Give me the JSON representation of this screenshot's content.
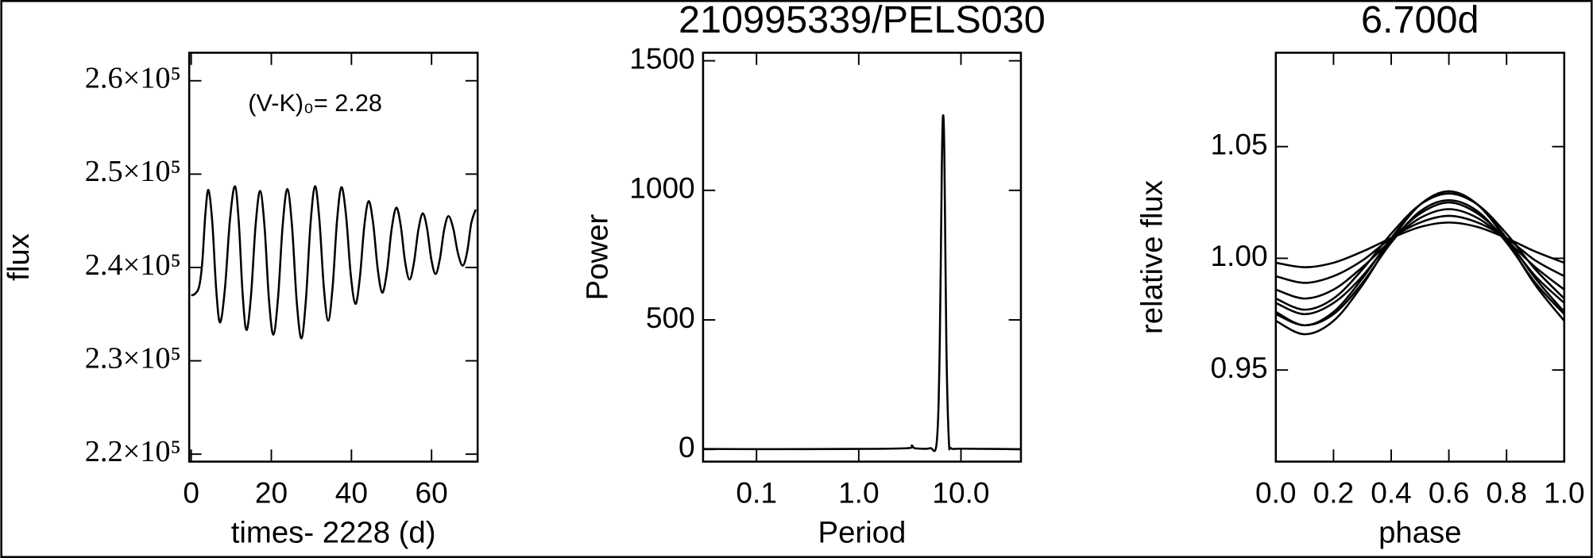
{
  "chart_data": [
    {
      "type": "line",
      "annotation": "(V-K)₀= 2.28",
      "xlabel": "times- 2228 (d)",
      "ylabel": "flux",
      "color": "#000000",
      "x": [
        0,
        1.0,
        2.0,
        2.77,
        3.53,
        4.3,
        5.27,
        6.23,
        7.2,
        8.43,
        9.67,
        10.9,
        11.87,
        12.83,
        13.8,
        14.93,
        16.07,
        17.2,
        18.3,
        19.4,
        20.5,
        21.67,
        22.83,
        24.0,
        25.17,
        26.33,
        27.5,
        28.63,
        29.77,
        30.9,
        32.0,
        33.1,
        34.2,
        35.3,
        36.4,
        37.5,
        38.67,
        39.83,
        41.0,
        42.1,
        43.2,
        44.3,
        45.43,
        46.57,
        47.7,
        48.87,
        50.03,
        51.2,
        52.3,
        53.4,
        54.5,
        55.6,
        56.7,
        57.8,
        58.87,
        59.93,
        61.0,
        62.07,
        63.13,
        64.2,
        65.4,
        66.6,
        67.8,
        68.9,
        69.9,
        71.0
      ],
      "values": [
        237000,
        237200,
        238000,
        240600,
        245700,
        248300,
        244800,
        237700,
        234100,
        237800,
        245100,
        248700,
        244900,
        237200,
        233300,
        237000,
        244500,
        248200,
        244400,
        236600,
        232800,
        236700,
        244500,
        248400,
        244400,
        236400,
        232400,
        236500,
        244600,
        248700,
        245100,
        237900,
        234300,
        237900,
        245000,
        248600,
        245500,
        239200,
        236100,
        238900,
        244400,
        247100,
        244700,
        239800,
        237300,
        239600,
        244100,
        246400,
        244500,
        240600,
        238700,
        240500,
        244000,
        245800,
        244200,
        240900,
        239300,
        240900,
        244000,
        245500,
        244200,
        241500,
        240200,
        241700,
        244700,
        246200
      ],
      "xlim": [
        -0.5,
        71.5
      ],
      "xticks": [
        0,
        20,
        40,
        60
      ],
      "ylim": [
        219200,
        263000
      ],
      "yticks": [
        {
          "value": 220000,
          "label": "2.2×10⁵"
        },
        {
          "value": 230000,
          "label": "2.3×10⁵"
        },
        {
          "value": 240000,
          "label": "2.4×10⁵"
        },
        {
          "value": 250000,
          "label": "2.5×10⁵"
        },
        {
          "value": 260000,
          "label": "2.6×10⁵"
        }
      ]
    },
    {
      "type": "line",
      "title": "210995339/PELS030",
      "xlabel": "Period",
      "ylabel": "Power",
      "color": "#000000",
      "xlog": true,
      "x": [
        0.03,
        0.1,
        1,
        3,
        3.3,
        3.5,
        4,
        5,
        5.8,
        6.2,
        6.5,
        6.7,
        6.9,
        7.2,
        7.6,
        8,
        10,
        20,
        38
      ],
      "values": [
        2,
        1,
        2,
        5,
        15,
        5,
        3,
        5,
        30,
        400,
        1100,
        1290,
        1100,
        400,
        40,
        5,
        3,
        2,
        1
      ],
      "xlim": [
        0.03,
        38.6
      ],
      "xticks": [
        0.1,
        {
          "value": 1,
          "label": "1.0"
        },
        {
          "value": 10,
          "label": "10.0"
        }
      ],
      "ylim": [
        -47,
        1531
      ],
      "yticks": [
        0,
        500,
        1000,
        1500
      ]
    },
    {
      "type": "line",
      "title": "6.700d",
      "xlabel": "phase",
      "ylabel": "relative flux",
      "x": [
        0,
        0.1,
        0.2,
        0.3,
        0.4,
        0.5,
        0.6,
        0.7,
        0.8,
        0.9,
        1.0
      ],
      "series": [
        {
          "color": "#000000",
          "values": [
            0.976,
            0.97,
            0.976,
            0.991,
            1.009,
            1.024,
            1.03,
            1.024,
            1.009,
            0.991,
            0.976
          ]
        },
        {
          "color": "#000000",
          "values": [
            0.972,
            0.966,
            0.972,
            0.988,
            1.008,
            1.024,
            1.03,
            1.024,
            1.008,
            0.988,
            0.972
          ]
        },
        {
          "color": "#000000",
          "values": [
            0.98,
            0.975,
            0.98,
            0.992,
            1.008,
            1.02,
            1.025,
            1.02,
            1.008,
            0.992,
            0.98
          ]
        },
        {
          "color": "#000000",
          "values": [
            0.986,
            0.982,
            0.986,
            0.996,
            1.008,
            1.018,
            1.022,
            1.018,
            1.008,
            0.996,
            0.986
          ]
        },
        {
          "color": "#000000",
          "values": [
            0.992,
            0.989,
            0.992,
            0.999,
            1.009,
            1.016,
            1.019,
            1.016,
            1.009,
            0.999,
            0.992
          ]
        },
        {
          "color": "#000000",
          "values": [
            0.998,
            0.996,
            0.998,
            1.003,
            1.009,
            1.014,
            1.016,
            1.014,
            1.009,
            1.003,
            0.998
          ]
        },
        {
          "color": "#000000",
          "values": [
            0.975,
            0.97,
            0.975,
            0.989,
            1.007,
            1.021,
            1.026,
            1.021,
            1.007,
            0.989,
            0.975
          ]
        },
        {
          "color": "#000000",
          "values": [
            0.982,
            0.977,
            0.982,
            0.995,
            1.011,
            1.024,
            1.029,
            1.024,
            1.011,
            0.995,
            0.982
          ]
        }
      ],
      "xlim": [
        0,
        1
      ],
      "xticks": [
        {
          "value": 0,
          "label": "0.0"
        },
        0.2,
        0.4,
        0.6,
        0.8,
        {
          "value": 1,
          "label": "1.0"
        }
      ],
      "ylim": [
        0.909,
        1.092
      ],
      "yticks": [
        0.95,
        {
          "value": 1,
          "label": "1.00"
        },
        1.05
      ]
    }
  ]
}
